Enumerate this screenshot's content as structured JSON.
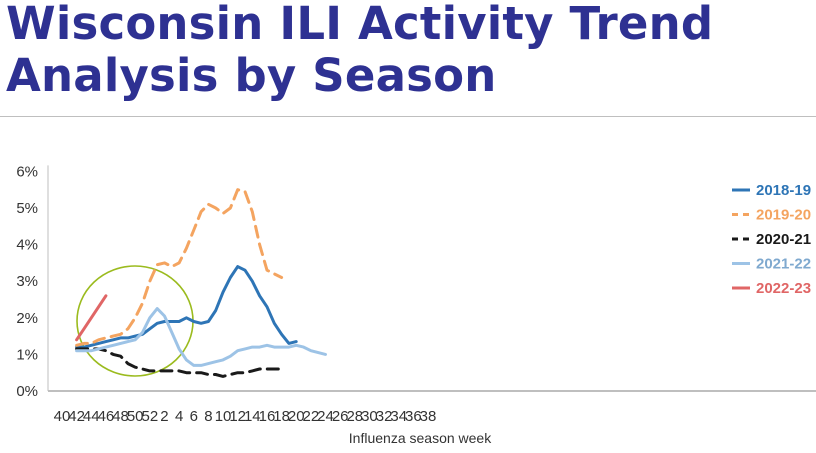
{
  "slide": {
    "title_line1": "Wisconsin ILI Activity Trend",
    "title_line2": "Analysis by Season"
  },
  "chart_data": {
    "type": "line",
    "title": "",
    "xlabel": "Influenza season week",
    "ylabel": "",
    "x_tick_labels": [
      "40",
      "42",
      "44",
      "46",
      "48",
      "50",
      "52",
      "2",
      "4",
      "6",
      "8",
      "10",
      "12",
      "14",
      "16",
      "18",
      "20",
      "22",
      "24",
      "26",
      "28",
      "30",
      "32",
      "34",
      "36",
      "38"
    ],
    "y_tick_labels": [
      "0%",
      "1%",
      "2%",
      "3%",
      "4%",
      "5%",
      "6%"
    ],
    "ylim": [
      0,
      6
    ],
    "grid": false,
    "legend_position": "right",
    "annotation": {
      "shape": "circle",
      "color": "#9bbb1e",
      "around": "weeks 42-48 (2022-23 season)"
    },
    "series": [
      {
        "name": "2018-19",
        "color": "#2e75b6",
        "dash": "solid",
        "x": [
          "42",
          "43",
          "44",
          "45",
          "46",
          "47",
          "48",
          "49",
          "50",
          "51",
          "52",
          "1",
          "2",
          "3",
          "4",
          "5",
          "6",
          "7",
          "8",
          "9",
          "10",
          "11",
          "12",
          "13",
          "14",
          "15",
          "16",
          "17",
          "18",
          "19",
          "20"
        ],
        "values": [
          1.2,
          1.2,
          1.25,
          1.3,
          1.35,
          1.4,
          1.45,
          1.45,
          1.5,
          1.55,
          1.7,
          1.85,
          1.9,
          1.9,
          1.9,
          2.0,
          1.9,
          1.85,
          1.9,
          2.2,
          2.7,
          3.1,
          3.4,
          3.3,
          3.0,
          2.6,
          2.3,
          1.85,
          1.55,
          1.3,
          1.35
        ]
      },
      {
        "name": "2019-20",
        "color": "#f4a460",
        "dash": "dashed",
        "x": [
          "42",
          "43",
          "44",
          "45",
          "46",
          "47",
          "48",
          "49",
          "50",
          "51",
          "52",
          "1",
          "2",
          "3",
          "4",
          "5",
          "6",
          "7",
          "8",
          "9",
          "10",
          "11",
          "12",
          "13",
          "14",
          "15",
          "16",
          "17",
          "18"
        ],
        "values": [
          1.25,
          1.3,
          1.3,
          1.4,
          1.45,
          1.5,
          1.55,
          1.7,
          2.0,
          2.4,
          3.0,
          3.45,
          3.5,
          3.4,
          3.5,
          3.9,
          4.4,
          4.9,
          5.1,
          5.0,
          4.85,
          5.0,
          5.5,
          5.45,
          4.9,
          4.0,
          3.3,
          3.2,
          3.1
        ]
      },
      {
        "name": "2020-21",
        "color": "#1a1a1a",
        "dash": "dashed",
        "x": [
          "42",
          "43",
          "44",
          "45",
          "46",
          "47",
          "48",
          "49",
          "50",
          "51",
          "52",
          "1",
          "2",
          "3",
          "4",
          "5",
          "6",
          "7",
          "8",
          "9",
          "10",
          "11",
          "12",
          "13",
          "14",
          "15",
          "16",
          "17",
          "18"
        ],
        "values": [
          1.15,
          1.15,
          1.15,
          1.15,
          1.1,
          1.0,
          0.95,
          0.75,
          0.65,
          0.6,
          0.55,
          0.55,
          0.55,
          0.55,
          0.55,
          0.5,
          0.5,
          0.5,
          0.45,
          0.45,
          0.4,
          0.45,
          0.5,
          0.5,
          0.55,
          0.6,
          0.6,
          0.6,
          0.6
        ]
      },
      {
        "name": "2021-22",
        "color": "#9dc3e6",
        "dash": "solid",
        "x": [
          "42",
          "43",
          "44",
          "45",
          "46",
          "47",
          "48",
          "49",
          "50",
          "51",
          "52",
          "1",
          "2",
          "3",
          "4",
          "5",
          "6",
          "7",
          "8",
          "9",
          "10",
          "11",
          "12",
          "13",
          "14",
          "15",
          "16",
          "17",
          "18",
          "19",
          "20",
          "21",
          "22",
          "23",
          "24"
        ],
        "values": [
          1.1,
          1.1,
          1.1,
          1.15,
          1.2,
          1.25,
          1.3,
          1.35,
          1.4,
          1.6,
          2.0,
          2.25,
          2.05,
          1.6,
          1.15,
          0.85,
          0.7,
          0.7,
          0.75,
          0.8,
          0.85,
          0.95,
          1.1,
          1.15,
          1.2,
          1.2,
          1.25,
          1.2,
          1.2,
          1.2,
          1.25,
          1.2,
          1.1,
          1.05,
          1.0
        ]
      },
      {
        "name": "2022-23",
        "color": "#e06666",
        "dash": "solid",
        "x": [
          "42",
          "43",
          "44",
          "45",
          "46"
        ],
        "values": [
          1.4,
          1.7,
          2.0,
          2.3,
          2.6
        ]
      }
    ]
  }
}
